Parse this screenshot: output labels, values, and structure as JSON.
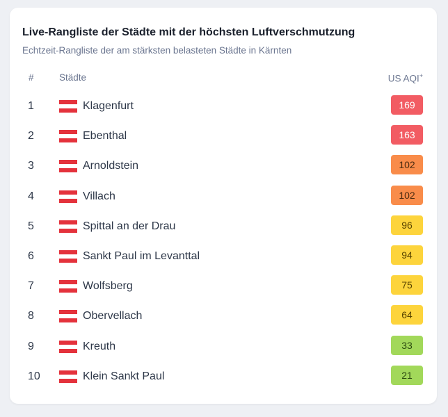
{
  "title": "Live-Rangliste der Städte mit der höchsten Luftverschmutzung",
  "subtitle": "Echtzeit-Rangliste der am stärksten belasteten Städte in Kärnten",
  "table": {
    "rank_header": "#",
    "city_header": "Städte",
    "aqi_header": "US AQI",
    "aqi_header_mark": "+",
    "rows": [
      {
        "rank": "1",
        "city": "Klagenfurt",
        "aqi": "169",
        "color": "#f25c63",
        "text_color": "#ffffff"
      },
      {
        "rank": "2",
        "city": "Ebenthal",
        "aqi": "163",
        "color": "#f25c63",
        "text_color": "#ffffff"
      },
      {
        "rank": "3",
        "city": "Arnoldstein",
        "aqi": "102",
        "color": "#f98c4a",
        "text_color": "#4a2a10"
      },
      {
        "rank": "4",
        "city": "Villach",
        "aqi": "102",
        "color": "#f98c4a",
        "text_color": "#4a2a10"
      },
      {
        "rank": "5",
        "city": "Spittal an der Drau",
        "aqi": "96",
        "color": "#fdd43c",
        "text_color": "#5a4500"
      },
      {
        "rank": "6",
        "city": "Sankt Paul im Levanttal",
        "aqi": "94",
        "color": "#fdd43c",
        "text_color": "#5a4500"
      },
      {
        "rank": "7",
        "city": "Wolfsberg",
        "aqi": "75",
        "color": "#fdd43c",
        "text_color": "#5a4500"
      },
      {
        "rank": "8",
        "city": "Obervellach",
        "aqi": "64",
        "color": "#fdd43c",
        "text_color": "#5a4500"
      },
      {
        "rank": "9",
        "city": "Kreuth",
        "aqi": "33",
        "color": "#a2d85a",
        "text_color": "#2c4a10"
      },
      {
        "rank": "10",
        "city": "Klein Sankt Paul",
        "aqi": "21",
        "color": "#a2d85a",
        "text_color": "#2c4a10"
      }
    ]
  }
}
